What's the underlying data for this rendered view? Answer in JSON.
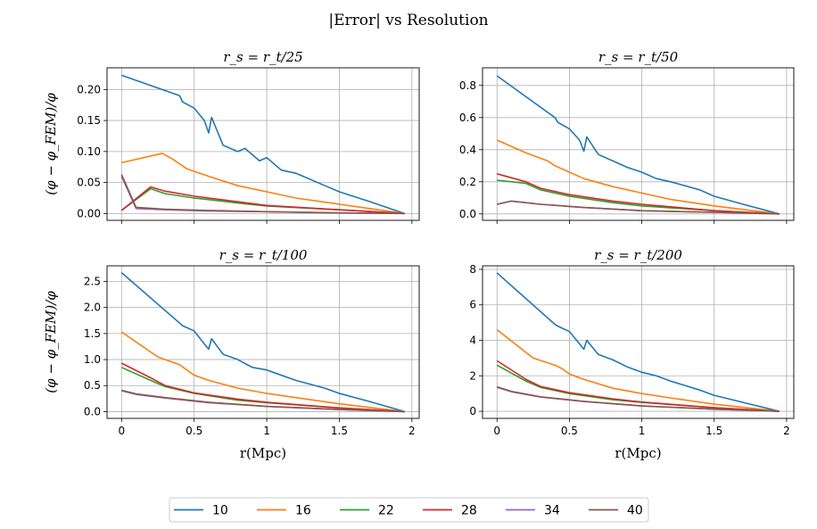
{
  "figure": {
    "title": "|Error| vs Resolution"
  },
  "legend": {
    "placement": "bottom-center",
    "entries": [
      {
        "label": "10",
        "color": "#1f77b4"
      },
      {
        "label": "16",
        "color": "#ff7f0e"
      },
      {
        "label": "22",
        "color": "#2ca02c"
      },
      {
        "label": "28",
        "color": "#d62728"
      },
      {
        "label": "34",
        "color": "#9467bd"
      },
      {
        "label": "40",
        "color": "#8c564b"
      }
    ]
  },
  "chart_data": [
    {
      "type": "line",
      "title": "r_s = r_t/25",
      "xlabel": "",
      "ylabel": "(φ − φ_FEM)/φ",
      "xlim": [
        -0.1,
        2.05
      ],
      "ylim": [
        -0.011,
        0.235
      ],
      "xticks": [
        "0",
        "0.5",
        "1",
        "1.5",
        "2"
      ],
      "yticks": [
        "0.00",
        "0.05",
        "0.10",
        "0.15",
        "0.20"
      ],
      "grid": true,
      "series": [
        {
          "name": "10",
          "x": [
            0,
            0.4,
            0.42,
            0.5,
            0.57,
            0.6,
            0.62,
            0.7,
            0.8,
            0.85,
            0.95,
            1.0,
            1.1,
            1.2,
            1.4,
            1.5,
            1.7,
            1.95
          ],
          "y": [
            0.223,
            0.19,
            0.18,
            0.17,
            0.15,
            0.13,
            0.155,
            0.11,
            0.1,
            0.105,
            0.085,
            0.09,
            0.07,
            0.065,
            0.045,
            0.035,
            0.02,
            0.0
          ]
        },
        {
          "name": "16",
          "x": [
            0,
            0.28,
            0.35,
            0.4,
            0.45,
            0.6,
            0.8,
            1.0,
            1.2,
            1.5,
            1.95
          ],
          "y": [
            0.082,
            0.097,
            0.088,
            0.08,
            0.072,
            0.06,
            0.045,
            0.035,
            0.025,
            0.015,
            0.0
          ]
        },
        {
          "name": "22",
          "x": [
            0,
            0.2,
            0.3,
            0.5,
            0.8,
            1.0,
            1.5,
            1.95
          ],
          "y": [
            0.005,
            0.04,
            0.032,
            0.025,
            0.017,
            0.012,
            0.006,
            0.0
          ]
        },
        {
          "name": "28",
          "x": [
            0,
            0.2,
            0.3,
            0.5,
            0.8,
            1.0,
            1.5,
            1.95
          ],
          "y": [
            0.005,
            0.043,
            0.036,
            0.028,
            0.019,
            0.013,
            0.006,
            0.0
          ]
        },
        {
          "name": "34",
          "x": [
            0,
            0.1,
            0.3,
            0.6,
            1.0,
            1.5,
            1.95
          ],
          "y": [
            0.06,
            0.008,
            0.006,
            0.004,
            0.003,
            0.001,
            0.0
          ]
        },
        {
          "name": "40",
          "x": [
            0,
            0.1,
            0.3,
            0.6,
            1.0,
            1.5,
            1.95
          ],
          "y": [
            0.063,
            0.01,
            0.007,
            0.005,
            0.003,
            0.001,
            0.0
          ]
        }
      ]
    },
    {
      "type": "line",
      "title": "r_s = r_t/50",
      "xlabel": "",
      "ylabel": "",
      "xlim": [
        -0.1,
        2.05
      ],
      "ylim": [
        -0.04,
        0.91
      ],
      "xticks": [
        "0",
        "0.5",
        "1",
        "1.5",
        "2"
      ],
      "yticks": [
        "0.0",
        "0.2",
        "0.4",
        "0.6",
        "0.8"
      ],
      "grid": true,
      "series": [
        {
          "name": "10",
          "x": [
            0,
            0.4,
            0.42,
            0.5,
            0.57,
            0.6,
            0.62,
            0.7,
            0.8,
            0.9,
            1.0,
            1.1,
            1.2,
            1.4,
            1.5,
            1.7,
            1.95
          ],
          "y": [
            0.86,
            0.6,
            0.57,
            0.53,
            0.46,
            0.39,
            0.48,
            0.37,
            0.33,
            0.29,
            0.26,
            0.22,
            0.2,
            0.15,
            0.11,
            0.06,
            0.0
          ]
        },
        {
          "name": "16",
          "x": [
            0,
            0.2,
            0.35,
            0.4,
            0.5,
            0.6,
            0.8,
            1.0,
            1.2,
            1.5,
            1.95
          ],
          "y": [
            0.46,
            0.38,
            0.33,
            0.3,
            0.26,
            0.22,
            0.17,
            0.13,
            0.09,
            0.05,
            0.0
          ]
        },
        {
          "name": "22",
          "x": [
            0,
            0.2,
            0.3,
            0.5,
            0.8,
            1.0,
            1.5,
            1.95
          ],
          "y": [
            0.21,
            0.19,
            0.15,
            0.11,
            0.07,
            0.05,
            0.02,
            0.0
          ]
        },
        {
          "name": "28",
          "x": [
            0,
            0.2,
            0.3,
            0.5,
            0.8,
            1.0,
            1.5,
            1.95
          ],
          "y": [
            0.25,
            0.2,
            0.16,
            0.12,
            0.08,
            0.06,
            0.02,
            0.0
          ]
        },
        {
          "name": "34",
          "x": [
            0,
            0.1,
            0.3,
            0.6,
            1.0,
            1.5,
            1.95
          ],
          "y": [
            0.06,
            0.08,
            0.06,
            0.04,
            0.02,
            0.01,
            0.0
          ]
        },
        {
          "name": "40",
          "x": [
            0,
            0.1,
            0.3,
            0.6,
            1.0,
            1.5,
            1.95
          ],
          "y": [
            0.06,
            0.08,
            0.06,
            0.04,
            0.02,
            0.01,
            0.0
          ]
        }
      ]
    },
    {
      "type": "line",
      "title": "r_s = r_t/100",
      "xlabel": "r(Mpc)",
      "ylabel": "(φ − φ_FEM)/φ",
      "xlim": [
        -0.1,
        2.05
      ],
      "ylim": [
        -0.13,
        2.8
      ],
      "xticks": [
        "0",
        "0.5",
        "1",
        "1.5",
        "2"
      ],
      "yticks": [
        "0.0",
        "0.5",
        "1.0",
        "1.5",
        "2.0",
        "2.5"
      ],
      "grid": true,
      "series": [
        {
          "name": "10",
          "x": [
            0,
            0.4,
            0.42,
            0.5,
            0.57,
            0.6,
            0.62,
            0.7,
            0.8,
            0.9,
            1.0,
            1.1,
            1.2,
            1.4,
            1.5,
            1.7,
            1.95
          ],
          "y": [
            2.67,
            1.7,
            1.65,
            1.55,
            1.3,
            1.2,
            1.4,
            1.1,
            1.0,
            0.85,
            0.8,
            0.7,
            0.6,
            0.45,
            0.35,
            0.2,
            0.0
          ]
        },
        {
          "name": "16",
          "x": [
            0,
            0.25,
            0.4,
            0.45,
            0.5,
            0.6,
            0.8,
            1.0,
            1.2,
            1.5,
            1.95
          ],
          "y": [
            1.53,
            1.05,
            0.9,
            0.8,
            0.7,
            0.6,
            0.45,
            0.35,
            0.27,
            0.15,
            0.0
          ]
        },
        {
          "name": "22",
          "x": [
            0,
            0.2,
            0.3,
            0.5,
            0.8,
            1.0,
            1.5,
            1.95
          ],
          "y": [
            0.85,
            0.6,
            0.48,
            0.35,
            0.22,
            0.17,
            0.07,
            0.0
          ]
        },
        {
          "name": "28",
          "x": [
            0,
            0.2,
            0.3,
            0.5,
            0.8,
            1.0,
            1.5,
            1.95
          ],
          "y": [
            0.93,
            0.65,
            0.5,
            0.36,
            0.24,
            0.18,
            0.07,
            0.0
          ]
        },
        {
          "name": "34",
          "x": [
            0,
            0.1,
            0.3,
            0.6,
            1.0,
            1.5,
            1.95
          ],
          "y": [
            0.4,
            0.33,
            0.26,
            0.17,
            0.1,
            0.04,
            0.0
          ]
        },
        {
          "name": "40",
          "x": [
            0,
            0.1,
            0.3,
            0.6,
            1.0,
            1.5,
            1.95
          ],
          "y": [
            0.41,
            0.34,
            0.27,
            0.18,
            0.1,
            0.04,
            0.0
          ]
        }
      ]
    },
    {
      "type": "line",
      "title": "r_s = r_t/200",
      "xlabel": "r(Mpc)",
      "ylabel": "",
      "xlim": [
        -0.1,
        2.05
      ],
      "ylim": [
        -0.4,
        8.2
      ],
      "xticks": [
        "0",
        "0.5",
        "1",
        "1.5",
        "2"
      ],
      "yticks": [
        "0",
        "2",
        "4",
        "6",
        "8"
      ],
      "grid": true,
      "series": [
        {
          "name": "10",
          "x": [
            0,
            0.4,
            0.42,
            0.5,
            0.57,
            0.6,
            0.62,
            0.7,
            0.8,
            0.9,
            1.0,
            1.1,
            1.2,
            1.4,
            1.5,
            1.7,
            1.95
          ],
          "y": [
            7.8,
            4.9,
            4.8,
            4.5,
            3.8,
            3.5,
            4.0,
            3.2,
            2.9,
            2.5,
            2.2,
            2.0,
            1.7,
            1.2,
            0.9,
            0.5,
            0.0
          ]
        },
        {
          "name": "16",
          "x": [
            0,
            0.25,
            0.4,
            0.45,
            0.5,
            0.6,
            0.8,
            1.0,
            1.2,
            1.5,
            1.95
          ],
          "y": [
            4.6,
            3.0,
            2.6,
            2.4,
            2.1,
            1.8,
            1.3,
            1.0,
            0.75,
            0.4,
            0.0
          ]
        },
        {
          "name": "22",
          "x": [
            0,
            0.2,
            0.3,
            0.5,
            0.8,
            1.0,
            1.5,
            1.95
          ],
          "y": [
            2.6,
            1.7,
            1.35,
            1.0,
            0.65,
            0.5,
            0.2,
            0.0
          ]
        },
        {
          "name": "28",
          "x": [
            0,
            0.2,
            0.3,
            0.5,
            0.8,
            1.0,
            1.5,
            1.95
          ],
          "y": [
            2.85,
            1.8,
            1.4,
            1.05,
            0.7,
            0.52,
            0.2,
            0.0
          ]
        },
        {
          "name": "34",
          "x": [
            0,
            0.1,
            0.3,
            0.6,
            1.0,
            1.5,
            1.95
          ],
          "y": [
            1.35,
            1.1,
            0.8,
            0.55,
            0.3,
            0.12,
            0.0
          ]
        },
        {
          "name": "40",
          "x": [
            0,
            0.1,
            0.3,
            0.6,
            1.0,
            1.5,
            1.95
          ],
          "y": [
            1.38,
            1.12,
            0.82,
            0.56,
            0.3,
            0.12,
            0.0
          ]
        }
      ]
    }
  ]
}
